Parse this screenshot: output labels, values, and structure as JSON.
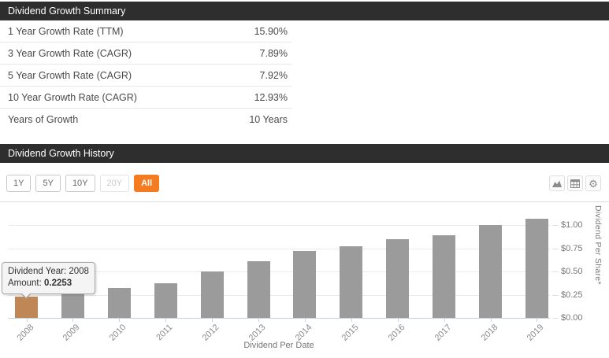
{
  "summary": {
    "title": "Dividend Growth Summary",
    "rows": [
      {
        "label": "1 Year Growth Rate (TTM)",
        "value": "15.90%"
      },
      {
        "label": "3 Year Growth Rate (CAGR)",
        "value": "7.89%"
      },
      {
        "label": "5 Year Growth Rate (CAGR)",
        "value": "7.92%"
      },
      {
        "label": "10 Year Growth Rate (CAGR)",
        "value": "12.93%"
      },
      {
        "label": "Years of Growth",
        "value": "10 Years"
      }
    ]
  },
  "history": {
    "title": "Dividend Growth History",
    "range_buttons": [
      {
        "label": "1Y",
        "state": "default"
      },
      {
        "label": "5Y",
        "state": "default"
      },
      {
        "label": "10Y",
        "state": "default"
      },
      {
        "label": "20Y",
        "state": "disabled"
      },
      {
        "label": "All",
        "state": "active"
      }
    ],
    "icon_buttons": [
      "area-chart-icon",
      "table-icon",
      "gear-icon"
    ],
    "tooltip": {
      "line1": "Dividend Year: 2008",
      "line2_label": "Amount: ",
      "line2_value": "0.2253"
    }
  },
  "chart_data": {
    "type": "bar",
    "title": "",
    "xlabel": "Dividend Per Date",
    "ylabel": "Dividend Per Share*",
    "categories": [
      "2008",
      "2009",
      "2010",
      "2011",
      "2012",
      "2013",
      "2014",
      "2015",
      "2016",
      "2017",
      "2018",
      "2019"
    ],
    "values": [
      0.2253,
      0.26,
      0.32,
      0.37,
      0.5,
      0.61,
      0.72,
      0.77,
      0.85,
      0.89,
      1.0,
      1.07
    ],
    "y_ticks": [
      "$0.00",
      "$0.25",
      "$0.50",
      "$0.75",
      "$1.00"
    ],
    "y_tick_values": [
      0,
      0.25,
      0.5,
      0.75,
      1.0
    ],
    "ylim": [
      0,
      1.1
    ],
    "grid": true,
    "legend": "none",
    "y_axis_position": "right",
    "bar_color": "#9b9b9b",
    "highlight_color": "#bf8656",
    "highlight_index": 0
  },
  "colors": {
    "section_header_bg": "#2e2e2e",
    "accent_orange": "#f47b1f",
    "bar_gray": "#9b9b9b",
    "bar_highlight": "#bf8656",
    "gridline": "#eaeaec",
    "axis_line": "#c7d1da"
  }
}
